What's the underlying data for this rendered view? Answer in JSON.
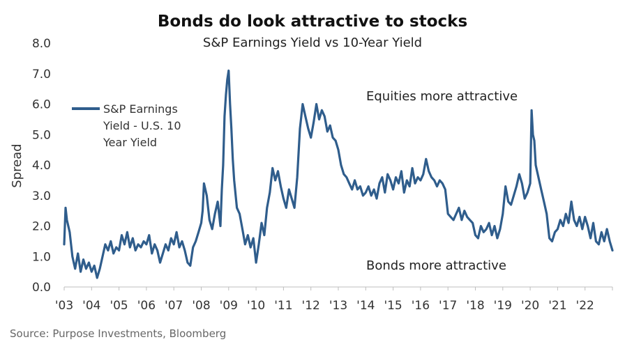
{
  "chart_data": {
    "type": "line",
    "title": "Bonds do look attractive to stocks",
    "subtitle": "S&P Earnings Yield vs 10-Year Yield",
    "ylabel": "Spread",
    "xlabel": "",
    "ylim": [
      0,
      8
    ],
    "yticks": [
      "0.0",
      "1.0",
      "2.0",
      "3.0",
      "4.0",
      "5.0",
      "6.0",
      "7.0",
      "8.0"
    ],
    "xticks": [
      "'03",
      "'04",
      "'05",
      "'06",
      "'07",
      "'08",
      "'09",
      "'10",
      "'11",
      "'12",
      "'13",
      "'14",
      "'15",
      "'16",
      "'17",
      "'18",
      "'19",
      "'20",
      "'21",
      "'22"
    ],
    "xlim": [
      2003,
      2023
    ],
    "grid": false,
    "legend": "left",
    "line_color": "#2f5d8c",
    "annotations": {
      "top": "Equities more attractive",
      "bottom": "Bonds more attractive"
    },
    "source": "Source: Purpose Investments, Bloomberg",
    "series": [
      {
        "name": "S&P Earnings Yield - U.S. 10 Year Yield",
        "legend_lines": [
          "S&P Earnings",
          "Yield - U.S. 10",
          "Year Yield"
        ],
        "x": [
          2003.0,
          2003.05,
          2003.1,
          2003.15,
          2003.2,
          2003.3,
          2003.4,
          2003.5,
          2003.6,
          2003.7,
          2003.8,
          2003.9,
          2004.0,
          2004.1,
          2004.2,
          2004.3,
          2004.4,
          2004.5,
          2004.6,
          2004.7,
          2004.8,
          2004.9,
          2005.0,
          2005.1,
          2005.2,
          2005.3,
          2005.4,
          2005.5,
          2005.6,
          2005.7,
          2005.8,
          2005.9,
          2006.0,
          2006.1,
          2006.2,
          2006.3,
          2006.4,
          2006.5,
          2006.6,
          2006.7,
          2006.8,
          2006.9,
          2007.0,
          2007.1,
          2007.2,
          2007.3,
          2007.4,
          2007.5,
          2007.6,
          2007.7,
          2007.8,
          2007.9,
          2008.0,
          2008.05,
          2008.1,
          2008.2,
          2008.3,
          2008.4,
          2008.5,
          2008.6,
          2008.7,
          2008.75,
          2008.8,
          2008.85,
          2008.9,
          2008.95,
          2009.0,
          2009.05,
          2009.1,
          2009.15,
          2009.2,
          2009.3,
          2009.4,
          2009.5,
          2009.6,
          2009.7,
          2009.8,
          2009.9,
          2010.0,
          2010.1,
          2010.2,
          2010.3,
          2010.4,
          2010.5,
          2010.6,
          2010.7,
          2010.8,
          2010.9,
          2011.0,
          2011.1,
          2011.2,
          2011.3,
          2011.4,
          2011.5,
          2011.6,
          2011.7,
          2011.8,
          2011.9,
          2012.0,
          2012.1,
          2012.2,
          2012.3,
          2012.4,
          2012.5,
          2012.6,
          2012.7,
          2012.8,
          2012.9,
          2013.0,
          2013.1,
          2013.2,
          2013.3,
          2013.4,
          2013.5,
          2013.6,
          2013.7,
          2013.8,
          2013.9,
          2014.0,
          2014.1,
          2014.2,
          2014.3,
          2014.4,
          2014.5,
          2014.6,
          2014.7,
          2014.8,
          2014.9,
          2015.0,
          2015.1,
          2015.2,
          2015.3,
          2015.4,
          2015.5,
          2015.6,
          2015.7,
          2015.8,
          2015.9,
          2016.0,
          2016.1,
          2016.2,
          2016.3,
          2016.4,
          2016.5,
          2016.6,
          2016.7,
          2016.8,
          2016.9,
          2017.0,
          2017.1,
          2017.2,
          2017.3,
          2017.4,
          2017.5,
          2017.6,
          2017.7,
          2017.8,
          2017.9,
          2018.0,
          2018.1,
          2018.2,
          2018.3,
          2018.4,
          2018.5,
          2018.6,
          2018.7,
          2018.8,
          2018.9,
          2019.0,
          2019.1,
          2019.2,
          2019.3,
          2019.4,
          2019.5,
          2019.6,
          2019.7,
          2019.8,
          2019.9,
          2020.0,
          2020.05,
          2020.1,
          2020.15,
          2020.2,
          2020.3,
          2020.4,
          2020.5,
          2020.6,
          2020.7,
          2020.8,
          2020.9,
          2021.0,
          2021.1,
          2021.2,
          2021.3,
          2021.4,
          2021.5,
          2021.6,
          2021.7,
          2021.8,
          2021.9,
          2022.0,
          2022.1,
          2022.2,
          2022.3,
          2022.4,
          2022.5,
          2022.6,
          2022.7,
          2022.8,
          2022.9,
          2023.0
        ],
        "y": [
          1.4,
          2.6,
          2.2,
          2.0,
          1.8,
          1.0,
          0.6,
          1.1,
          0.5,
          0.9,
          0.6,
          0.8,
          0.5,
          0.7,
          0.3,
          0.6,
          1.0,
          1.4,
          1.2,
          1.5,
          1.1,
          1.3,
          1.2,
          1.7,
          1.4,
          1.8,
          1.3,
          1.6,
          1.2,
          1.4,
          1.3,
          1.5,
          1.4,
          1.7,
          1.1,
          1.4,
          1.2,
          0.8,
          1.1,
          1.4,
          1.2,
          1.6,
          1.4,
          1.8,
          1.3,
          1.5,
          1.2,
          0.8,
          0.7,
          1.3,
          1.5,
          1.8,
          2.1,
          2.5,
          3.4,
          3.0,
          2.2,
          1.9,
          2.4,
          2.8,
          2.0,
          3.2,
          4.0,
          5.6,
          6.3,
          6.8,
          7.1,
          6.0,
          5.2,
          4.2,
          3.5,
          2.6,
          2.4,
          1.9,
          1.4,
          1.7,
          1.3,
          1.6,
          0.8,
          1.4,
          2.1,
          1.7,
          2.6,
          3.1,
          3.9,
          3.5,
          3.8,
          3.3,
          2.9,
          2.6,
          3.2,
          2.9,
          2.6,
          3.6,
          5.2,
          6.0,
          5.6,
          5.2,
          4.9,
          5.4,
          6.0,
          5.5,
          5.8,
          5.6,
          5.1,
          5.3,
          4.9,
          4.8,
          4.5,
          4.0,
          3.7,
          3.6,
          3.4,
          3.2,
          3.5,
          3.2,
          3.3,
          3.0,
          3.1,
          3.3,
          3.0,
          3.2,
          2.9,
          3.4,
          3.6,
          3.1,
          3.7,
          3.5,
          3.2,
          3.6,
          3.4,
          3.8,
          3.1,
          3.5,
          3.3,
          3.9,
          3.4,
          3.6,
          3.5,
          3.7,
          4.2,
          3.8,
          3.6,
          3.5,
          3.3,
          3.5,
          3.4,
          3.2,
          2.4,
          2.3,
          2.2,
          2.4,
          2.6,
          2.2,
          2.5,
          2.3,
          2.2,
          2.1,
          1.7,
          1.6,
          2.0,
          1.8,
          1.9,
          2.1,
          1.7,
          2.0,
          1.6,
          1.9,
          2.4,
          3.3,
          2.8,
          2.7,
          3.0,
          3.3,
          3.7,
          3.4,
          2.9,
          3.1,
          3.4,
          5.8,
          5.0,
          4.8,
          4.0,
          3.6,
          3.2,
          2.8,
          2.4,
          1.6,
          1.5,
          1.8,
          1.9,
          2.2,
          2.0,
          2.4,
          2.1,
          2.8,
          2.2,
          2.0,
          2.3,
          1.9,
          2.3,
          2.0,
          1.6,
          2.1,
          1.5,
          1.4,
          1.8,
          1.5,
          1.9,
          1.5,
          1.2
        ]
      }
    ]
  }
}
